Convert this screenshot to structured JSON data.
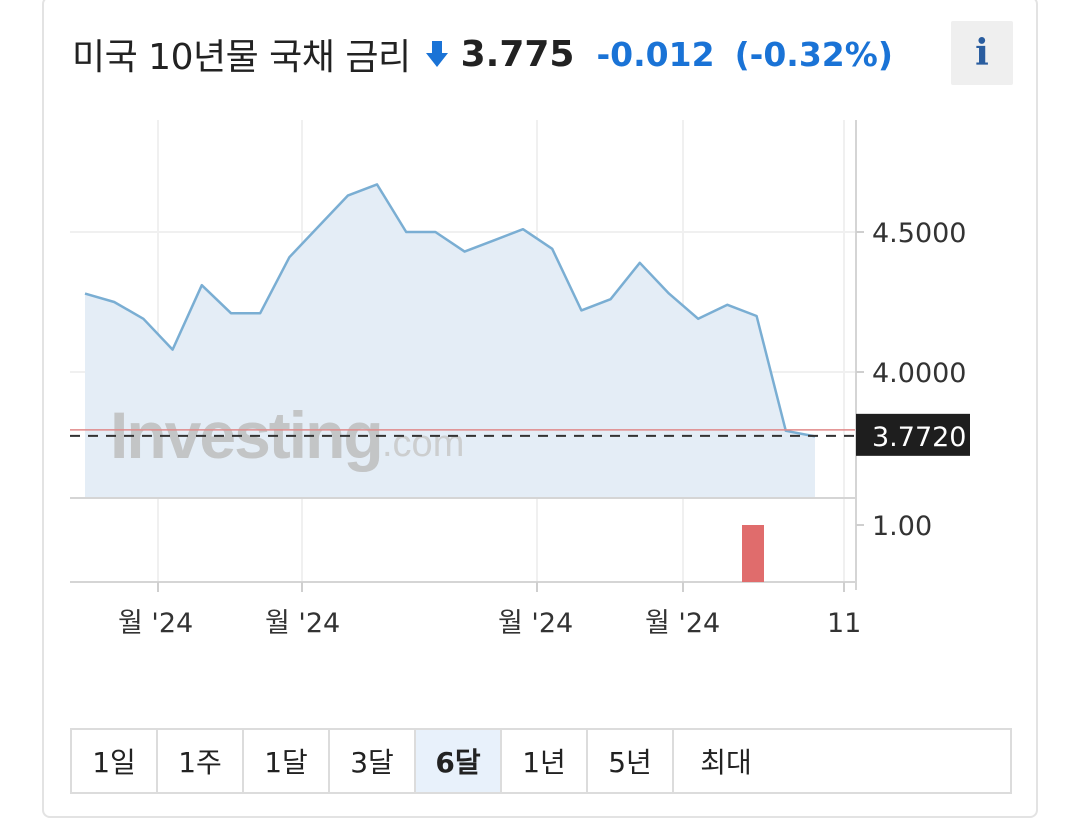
{
  "header": {
    "title": "미국 10년물 국채 금리",
    "price": "3.775",
    "change": "-0.012",
    "change_pct": "(-0.32%)",
    "info_label": "i",
    "arrow_icon": "down-arrow-icon",
    "change_color": "#1a73d6"
  },
  "chart_data": {
    "type": "area",
    "series": [
      {
        "values": [
          4.28,
          4.25,
          4.19,
          4.08,
          4.31,
          4.21,
          4.21,
          4.41,
          4.52,
          4.63,
          4.67,
          4.5,
          4.5,
          4.43,
          4.47,
          4.51,
          4.44,
          4.22,
          4.26,
          4.39,
          4.28,
          4.19,
          4.24,
          4.2,
          3.79,
          3.77
        ]
      }
    ],
    "y_ticks": [
      "4.5000",
      "4.0000"
    ],
    "ylim": [
      3.55,
      4.9
    ],
    "last_value_label": "3.7720",
    "x_tick_labels": [
      "월 '24",
      "월 '24",
      "월 '24",
      "월 '24",
      "11"
    ],
    "volume_tick": "1.00",
    "volume_bar": {
      "value": 1.0
    },
    "watermark": "Investing",
    "watermark_suffix": ".com",
    "line_color": "#7aaed3",
    "fill_color": "#e4edf6",
    "last_line_color": "#e08a8a",
    "volume_color": "#e06c6c",
    "grid": true
  },
  "range_tabs": [
    "1일",
    "1주",
    "1달",
    "3달",
    "6달",
    "1년",
    "5년",
    "최대"
  ],
  "active_tab": "6달"
}
